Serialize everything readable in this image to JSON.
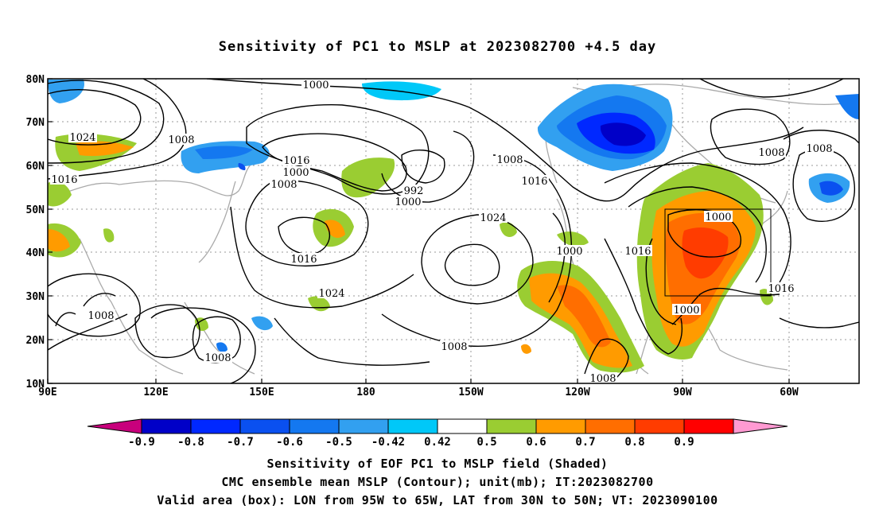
{
  "title": "Sensitivity of PC1 to MSLP at 2023082700 +4.5 day",
  "map": {
    "lon_labels": [
      "90E",
      "120E",
      "150E",
      "180",
      "150W",
      "120W",
      "90W",
      "60W"
    ],
    "lat_labels": [
      "80N",
      "70N",
      "60N",
      "50N",
      "40N",
      "30N",
      "20N",
      "10N"
    ],
    "box_region": "LON from 95W to 65W, LAT from 30N to 50N",
    "contour_labels": [
      "1000",
      "1024",
      "1008",
      "1016",
      "1000",
      "1008",
      "1016",
      "992",
      "1000",
      "1008",
      "1016",
      "1024",
      "1016",
      "1024",
      "1008",
      "1008",
      "1000",
      "1016",
      "1008",
      "1008",
      "1000",
      "1000",
      "1008",
      "1008",
      "1016"
    ]
  },
  "colorbar": {
    "labels": [
      "-0.9",
      "-0.8",
      "-0.7",
      "-0.6",
      "-0.5",
      "-0.42",
      "0.42",
      "0.5",
      "0.6",
      "0.7",
      "0.8",
      "0.9"
    ],
    "colors": [
      "#c8007c",
      "#0000c8",
      "#0028ff",
      "#0a50f0",
      "#1478f0",
      "#32a0f0",
      "#00c8f8",
      "#ffffff",
      "#9acd32",
      "#ff9b00",
      "#ff6e00",
      "#ff3c00",
      "#ff0000",
      "#ff9ad2"
    ]
  },
  "caption": {
    "line1": "Sensitivity of EOF PC1 to MSLP field (Shaded)",
    "line2": "CMC ensemble mean MSLP (Contour); unit(mb); IT:2023082700",
    "line3": "Valid area (box): LON from 95W to 65W, LAT from 30N to 50N; VT: 2023090100"
  }
}
